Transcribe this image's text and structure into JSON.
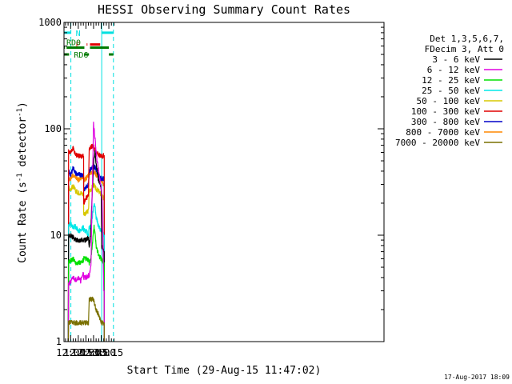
{
  "chart_data": {
    "type": "line",
    "title": "HESSI Observing Summary Count Rates",
    "xlabel": "Start Time (29-Aug-15 11:47:02)",
    "ylabel_main": "Count Rate (s",
    "ylabel_sup1": "-1",
    "ylabel_mid": " detector",
    "ylabel_sup2": "-1",
    "ylabel_end": ")",
    "yscale": "log",
    "ylim": [
      1,
      1000
    ],
    "y_ticks": [
      {
        "value": 1,
        "label": "1"
      },
      {
        "value": 10,
        "label": "10"
      },
      {
        "value": 100,
        "label": "100"
      },
      {
        "value": 1000,
        "label": "1000"
      }
    ],
    "xlim_min": [
      707,
      1335
    ],
    "x_ticks": [
      {
        "value": 720,
        "label": "12:00"
      },
      {
        "value": 735,
        "label": "12:15"
      },
      {
        "value": 750,
        "label": "12:30"
      },
      {
        "value": 765,
        "label": "12:45"
      },
      {
        "value": 780,
        "label": "13:00"
      },
      {
        "value": 795,
        "label": "13:15"
      }
    ],
    "legend": {
      "header": [
        "Det 1,3,5,6,7,",
        "FDecim 3, Att 0"
      ],
      "entries": [
        {
          "label": "3 - 6 keV",
          "color": "#000000"
        },
        {
          "label": "6 - 12 keV",
          "color": "#e000e0"
        },
        {
          "label": "12 - 25 keV",
          "color": "#00e000"
        },
        {
          "label": "25 - 50 keV",
          "color": "#00e8e8"
        },
        {
          "label": "50 - 100 keV",
          "color": "#d8c800"
        },
        {
          "label": "100 - 300 keV",
          "color": "#e00000"
        },
        {
          "label": "300 - 800 keV",
          "color": "#0000c8"
        },
        {
          "label": "800 - 7000 keV",
          "color": "#ff8800"
        },
        {
          "label": "7000 - 20000 keV",
          "color": "#7a7000"
        }
      ]
    },
    "flags": [
      {
        "label": "N",
        "color": "#00e0e0",
        "y": 800,
        "segments": [
          [
            707,
            720.5
          ],
          [
            781,
            804
          ]
        ]
      },
      {
        "label": "F",
        "color": "#e00000",
        "y": 620,
        "segments": [
          [
            751.5,
            753
          ],
          [
            758,
            778
          ]
        ]
      },
      {
        "label": "RD0",
        "color": "#007a00",
        "y": 580,
        "segments": [
          [
            707,
            709
          ],
          [
            712,
            747
          ],
          [
            758,
            795
          ]
        ]
      },
      {
        "label": "RD6",
        "color": "#007a00",
        "y": 500,
        "segments": [
          [
            707,
            717
          ],
          [
            747,
            756
          ],
          [
            795,
            804
          ]
        ]
      }
    ],
    "vlines": [
      {
        "x": 720.5,
        "color": "#00e0e0",
        "style": "dashed"
      },
      {
        "x": 781,
        "color": "#00e0e0",
        "style": "solid"
      },
      {
        "x": 804,
        "color": "#00e0e0",
        "style": "dashed"
      },
      {
        "x": 707,
        "color": "#00e0e0",
        "style": "solid"
      }
    ],
    "series": [
      {
        "name": "800 - 7000 keV",
        "color": "#ff8800",
        "x": [
          715.5,
          716,
          720,
          725,
          730,
          735,
          740,
          745.4,
          745.6,
          750,
          755,
          756.5,
          760,
          765,
          770,
          775,
          780,
          785,
          786
        ],
        "values": [
          1,
          33,
          34,
          37,
          35,
          33,
          34,
          36,
          33,
          34,
          37,
          38,
          39,
          40,
          37,
          35,
          33,
          30,
          30
        ]
      },
      {
        "name": "50 - 100 keV",
        "color": "#d8c800",
        "x": [
          715.5,
          716,
          720,
          725,
          730,
          735,
          740,
          745.4,
          745.6,
          750,
          755,
          756.5,
          760,
          765,
          770,
          775,
          780,
          785,
          786
        ],
        "values": [
          1,
          28,
          27,
          29,
          26,
          25,
          25,
          24,
          16,
          16,
          17,
          26,
          27,
          30,
          27,
          26,
          24,
          22,
          22
        ]
      },
      {
        "name": "300 - 800 keV",
        "color": "#0000c8",
        "x": [
          715.5,
          716,
          720,
          725,
          730,
          735,
          740,
          745.4,
          745.6,
          750,
          755,
          756.5,
          760,
          765,
          770,
          775,
          780,
          785,
          786
        ],
        "values": [
          1,
          40,
          37,
          43,
          38,
          37,
          37,
          37,
          27,
          28,
          30,
          40,
          42,
          45,
          42,
          37,
          34,
          34,
          35
        ]
      },
      {
        "name": "100 - 300 keV",
        "color": "#e00000",
        "x": [
          715.5,
          716,
          720,
          725,
          730,
          735,
          740,
          745.4,
          745.6,
          750,
          755,
          756.5,
          760,
          765,
          770,
          775,
          780,
          785,
          786
        ],
        "values": [
          1,
          62,
          60,
          66,
          57,
          56,
          55,
          56,
          20,
          22,
          24,
          65,
          68,
          68,
          60,
          57,
          55,
          56,
          56
        ]
      },
      {
        "name": "25 - 50 keV",
        "color": "#00e8e8",
        "x": [
          715.5,
          716,
          720,
          725,
          730,
          735,
          740,
          745.4,
          745.6,
          750,
          755,
          756.5,
          760,
          762,
          764,
          766,
          768,
          770,
          775,
          780,
          785,
          786
        ],
        "values": [
          1,
          12,
          13,
          12,
          12,
          11,
          11,
          12,
          11,
          11,
          10,
          12,
          12,
          14,
          17,
          20,
          18,
          15,
          12,
          11,
          10,
          10
        ]
      },
      {
        "name": "3 - 6 keV",
        "color": "#000000",
        "x": [
          715.5,
          716,
          720,
          725,
          730,
          735,
          740,
          745.4,
          745.6,
          750,
          755,
          756.5,
          758,
          760,
          762,
          764,
          766,
          768,
          770,
          772,
          775,
          778,
          780,
          781,
          785,
          786
        ],
        "values": [
          1,
          10,
          10,
          9.5,
          9,
          9,
          9,
          9,
          9,
          9,
          9.5,
          8,
          9,
          12,
          22,
          35,
          55,
          60,
          48,
          40,
          32,
          30,
          28,
          8,
          7,
          7
        ]
      },
      {
        "name": "12 - 25 keV",
        "color": "#00e000",
        "x": [
          715.5,
          716,
          720,
          725,
          730,
          735,
          740,
          745.4,
          745.6,
          750,
          755,
          756.5,
          760,
          762,
          764,
          766,
          768,
          770,
          775,
          780,
          785,
          786
        ],
        "values": [
          1,
          5.5,
          5.8,
          6,
          5.5,
          5.5,
          5.5,
          5.8,
          6,
          6,
          5.8,
          5.5,
          6,
          7.5,
          10,
          12,
          10,
          8,
          6.5,
          6,
          5.5,
          5.5
        ]
      },
      {
        "name": "6 - 12 keV",
        "color": "#e000e0",
        "x": [
          715.5,
          716,
          720,
          725,
          730,
          735,
          740,
          745.4,
          745.6,
          750,
          755,
          756.5,
          760,
          762,
          764,
          765,
          766,
          768,
          770,
          772,
          775,
          778,
          780,
          782,
          785,
          786
        ],
        "values": [
          1,
          3.5,
          3.6,
          4,
          3.8,
          4,
          3.7,
          4.5,
          4,
          4,
          4.2,
          4,
          5.5,
          20,
          60,
          110,
          100,
          80,
          60,
          50,
          40,
          32,
          28,
          22,
          3,
          3
        ]
      },
      {
        "name": "7000 - 20000 keV",
        "color": "#7a7000",
        "x": [
          715.5,
          716,
          720,
          725,
          730,
          735,
          740,
          745.4,
          745.6,
          750,
          755,
          756.5,
          760,
          765,
          770,
          775,
          780,
          785,
          786
        ],
        "values": [
          1,
          1.5,
          1.5,
          1.5,
          1.5,
          1.5,
          1.5,
          1.5,
          1.5,
          1.5,
          1.5,
          2.5,
          2.5,
          2.5,
          2,
          1.8,
          1.5,
          1.5,
          1.5
        ]
      }
    ]
  },
  "footer": {
    "date": "17-Aug-2017 18:09"
  }
}
